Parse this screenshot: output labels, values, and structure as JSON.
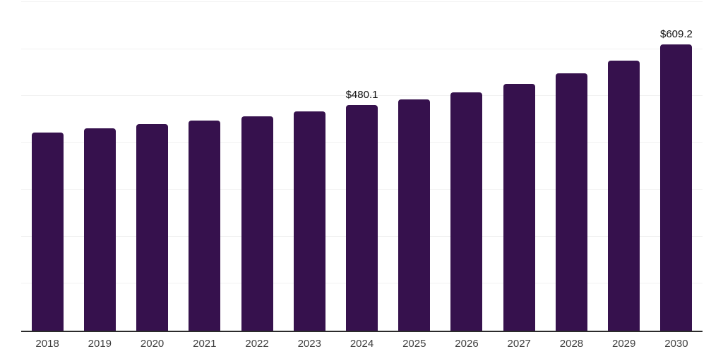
{
  "chart_data": {
    "type": "bar",
    "title": "",
    "xlabel": "",
    "ylabel": "",
    "categories": [
      "2018",
      "2019",
      "2020",
      "2021",
      "2022",
      "2023",
      "2024",
      "2025",
      "2026",
      "2027",
      "2028",
      "2029",
      "2030"
    ],
    "values": [
      421.5,
      430.4,
      439.8,
      447.5,
      457.3,
      467.8,
      480.1,
      492.2,
      507.1,
      525.9,
      548.3,
      575.8,
      609.2
    ],
    "value_labels": [
      null,
      null,
      null,
      null,
      null,
      null,
      "$480.1",
      null,
      null,
      null,
      null,
      null,
      "$609.2"
    ],
    "ylim": [
      0,
      700
    ],
    "gridline_interval": 100,
    "grid": true,
    "legend": false,
    "colors": {
      "bar": "#36114D",
      "gridline": "#f1f1f1",
      "axis_line": "#2b2b2b",
      "tick_label": "#3f3f3f",
      "value_label": "#111111",
      "background": "#ffffff"
    }
  }
}
